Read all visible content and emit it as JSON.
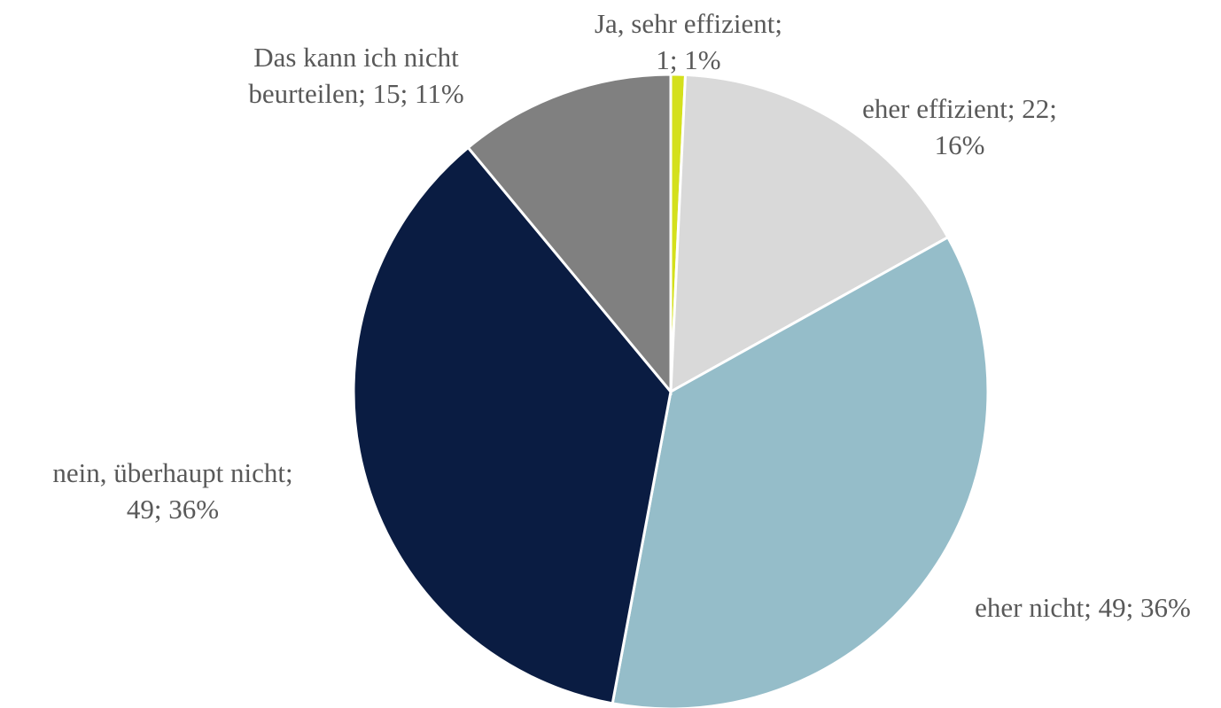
{
  "chart_data": {
    "type": "pie",
    "values": [
      1,
      22,
      49,
      49,
      15
    ],
    "value_labels": [
      [
        "Ja, sehr effizient;",
        "1; 1%"
      ],
      [
        "eher effizient; 22;",
        "16%"
      ],
      [
        "eher nicht; 49; 36%"
      ],
      [
        "nein, überhaupt nicht;",
        "49; 36%"
      ],
      [
        "Das kann ich nicht",
        "beurteilen; 15; 11%"
      ]
    ],
    "colors": [
      "#d4e01c",
      "#d9d9d9",
      "#95bdc9",
      "#0a1c42",
      "#808080"
    ]
  }
}
